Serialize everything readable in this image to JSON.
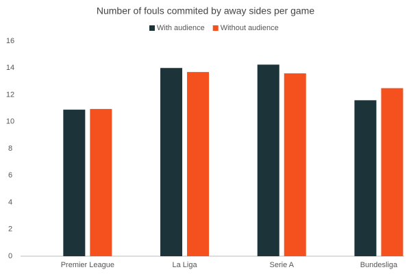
{
  "chart_data": {
    "type": "bar",
    "title": "Number of fouls commited by away sides per game",
    "categories": [
      "Premier League",
      "La Liga",
      "Serie A",
      "Bundesliga"
    ],
    "series": [
      {
        "name": "With audience",
        "color": "#1c333a",
        "values": [
          10.9,
          14.0,
          14.25,
          11.6
        ]
      },
      {
        "name": "Without audience",
        "color": "#f4511e",
        "values": [
          10.95,
          13.7,
          13.6,
          12.5
        ]
      }
    ],
    "ylim": [
      0,
      16
    ],
    "yticks": [
      0,
      2,
      4,
      6,
      8,
      10,
      12,
      14,
      16
    ],
    "grid": false,
    "legend": "top"
  }
}
